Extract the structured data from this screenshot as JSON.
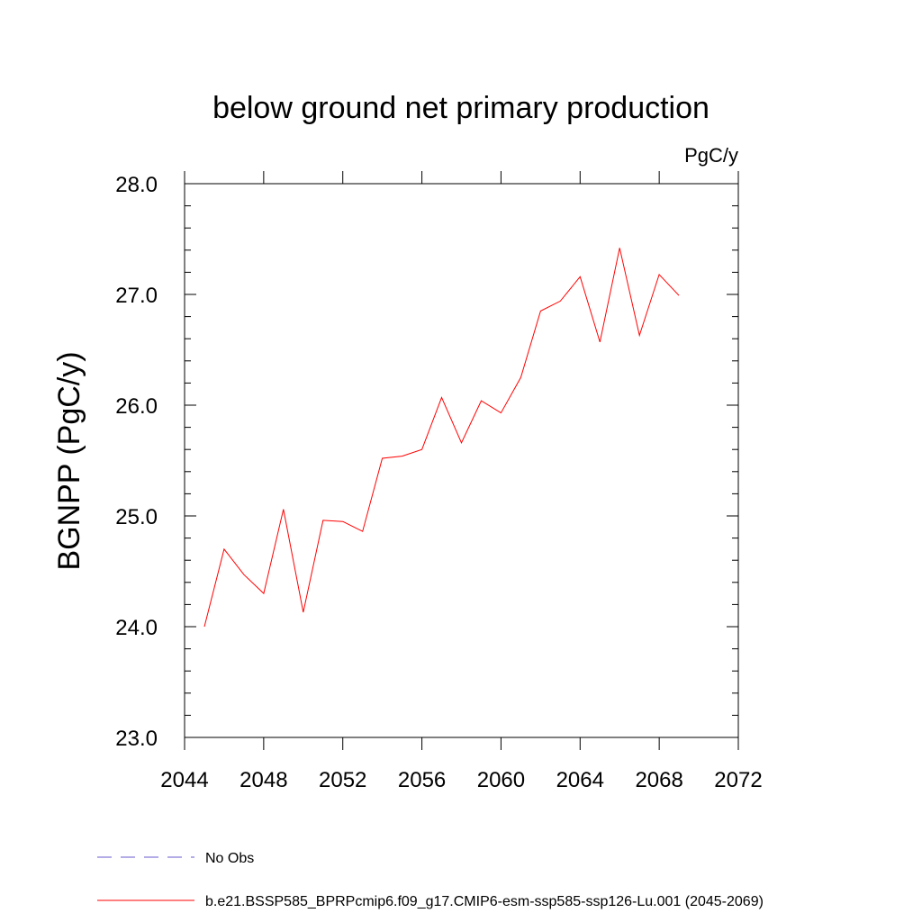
{
  "chart_data": {
    "type": "line",
    "title": "below ground net primary production",
    "units_label": "PgC/y",
    "ylabel": "BGNPP  (PgC/y)",
    "xlabel": "",
    "xlim": [
      2044,
      2072
    ],
    "ylim": [
      23.0,
      28.0
    ],
    "x_ticks": [
      2044,
      2048,
      2052,
      2056,
      2060,
      2064,
      2068,
      2072
    ],
    "x_tick_labels": [
      "2044",
      "2048",
      "2052",
      "2056",
      "2060",
      "2064",
      "2068",
      "2072"
    ],
    "y_ticks": [
      23.0,
      24.0,
      25.0,
      26.0,
      27.0,
      28.0
    ],
    "y_tick_labels": [
      "23.0",
      "24.0",
      "25.0",
      "26.0",
      "27.0",
      "28.0"
    ],
    "grid": false,
    "legend_position": "bottom",
    "series": [
      {
        "name": "b.e21.BSSP585_BPRPcmip6.f09_g17.CMIP6-esm-ssp585-ssp126-Lu.001 (2045-2069)",
        "color": "#ff0000",
        "x": [
          2045,
          2046,
          2047,
          2048,
          2049,
          2050,
          2051,
          2052,
          2053,
          2054,
          2055,
          2056,
          2057,
          2058,
          2059,
          2060,
          2061,
          2062,
          2063,
          2064,
          2065,
          2066,
          2067,
          2068,
          2069
        ],
        "y": [
          24.0,
          24.7,
          24.47,
          24.3,
          25.06,
          24.13,
          24.96,
          24.95,
          24.86,
          25.52,
          25.54,
          25.6,
          26.07,
          25.66,
          26.04,
          25.93,
          26.25,
          26.85,
          26.94,
          27.16,
          26.57,
          27.42,
          26.63,
          27.18,
          26.99
        ]
      }
    ],
    "legend": [
      {
        "label": "No Obs",
        "color": "#6a5acd",
        "style": "dashed"
      },
      {
        "label": "b.e21.BSSP585_BPRPcmip6.f09_g17.CMIP6-esm-ssp585-ssp126-Lu.001 (2045-2069)",
        "color": "#ff0000",
        "style": "solid"
      }
    ]
  }
}
